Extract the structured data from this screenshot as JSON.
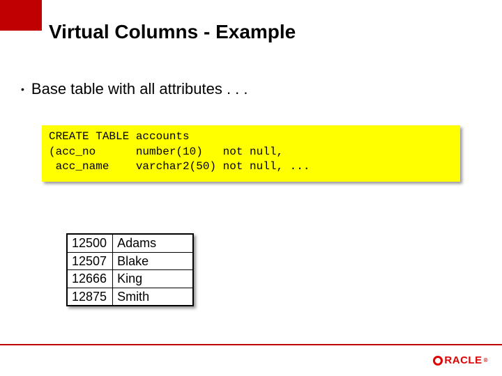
{
  "colors": {
    "accent": "#c00000",
    "code_bg": "#ffff00",
    "logo": "#e00000",
    "text": "#000000",
    "bg": "#ffffff"
  },
  "title": "Virtual Columns - Example",
  "bullet": "Base table with all attributes . . .",
  "code": {
    "line1": "CREATE TABLE accounts",
    "line2": "(acc_no      number(10)   not null,",
    "line3": " acc_name    varchar2(50) not null, ..."
  },
  "table": {
    "rows": [
      {
        "id": "12500",
        "name": "Adams"
      },
      {
        "id": "12507",
        "name": "Blake"
      },
      {
        "id": "12666",
        "name": "King"
      },
      {
        "id": "12875",
        "name": "Smith"
      }
    ]
  },
  "logo_text": "RACLE"
}
